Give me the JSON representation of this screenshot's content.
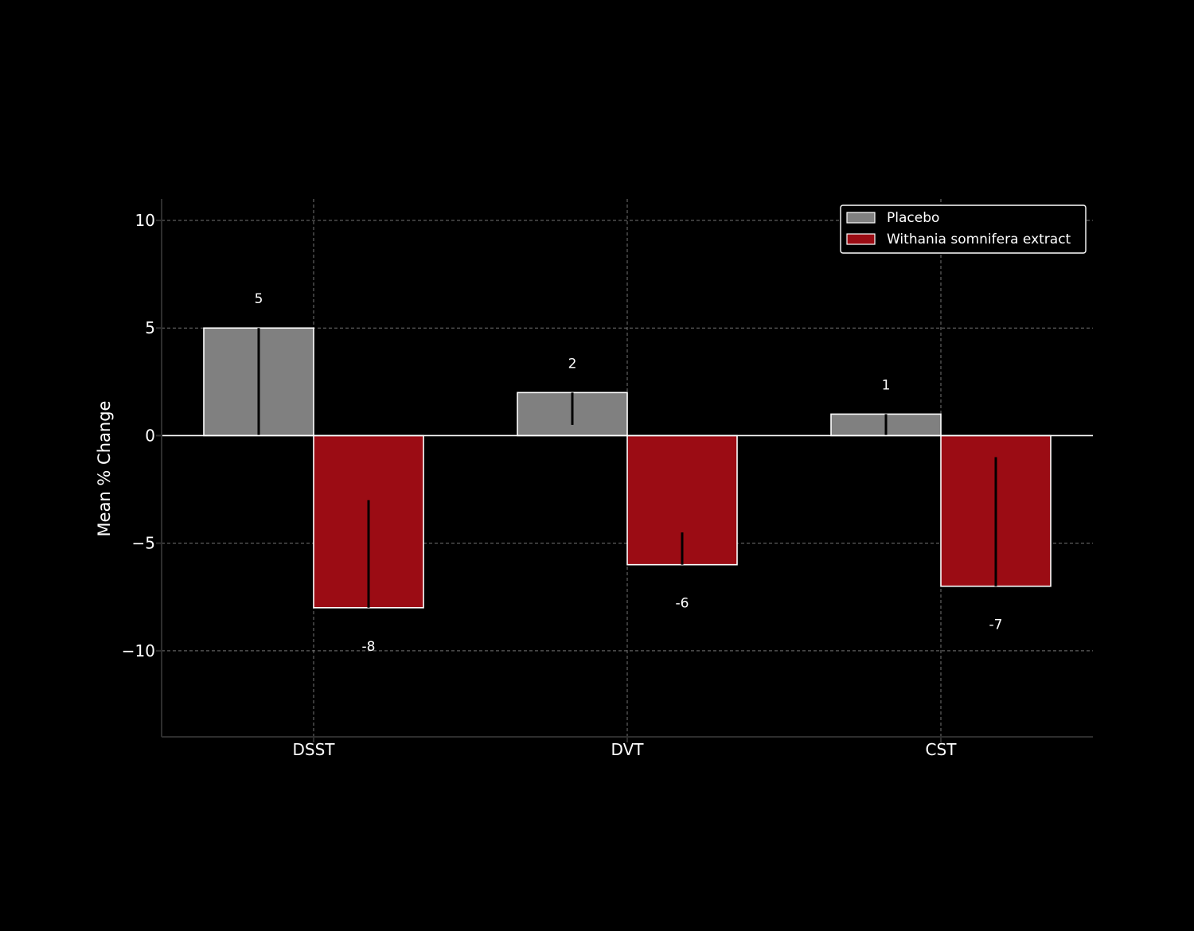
{
  "chart_data": {
    "type": "bar",
    "categories": [
      "DSST",
      "DVT",
      "CST"
    ],
    "series": [
      {
        "name": "Placebo",
        "color": "#808080",
        "values": [
          5,
          2,
          1
        ],
        "error_low": [
          0,
          0.5,
          0
        ],
        "error_high": [
          5,
          2,
          1
        ]
      },
      {
        "name": "Withania somnifera extract",
        "color": "#9b0c14",
        "values": [
          -8,
          -6,
          -7
        ],
        "error_low": [
          -8,
          -6,
          -7
        ],
        "error_high": [
          -3,
          -4.5,
          -1
        ]
      }
    ],
    "data_labels": [
      [
        "5",
        "2",
        "1"
      ],
      [
        "-8",
        "-6",
        "-7"
      ]
    ],
    "ylabel": "Mean % Change",
    "xlabel": "",
    "title": "",
    "ylim": [
      -14,
      11
    ],
    "yticks": [
      10,
      5,
      0,
      -5,
      -10
    ],
    "ytick_labels": [
      "10",
      "5",
      "0",
      "−5",
      "−10"
    ],
    "grid": true,
    "legend_position": "top-right",
    "background": "#000000"
  }
}
